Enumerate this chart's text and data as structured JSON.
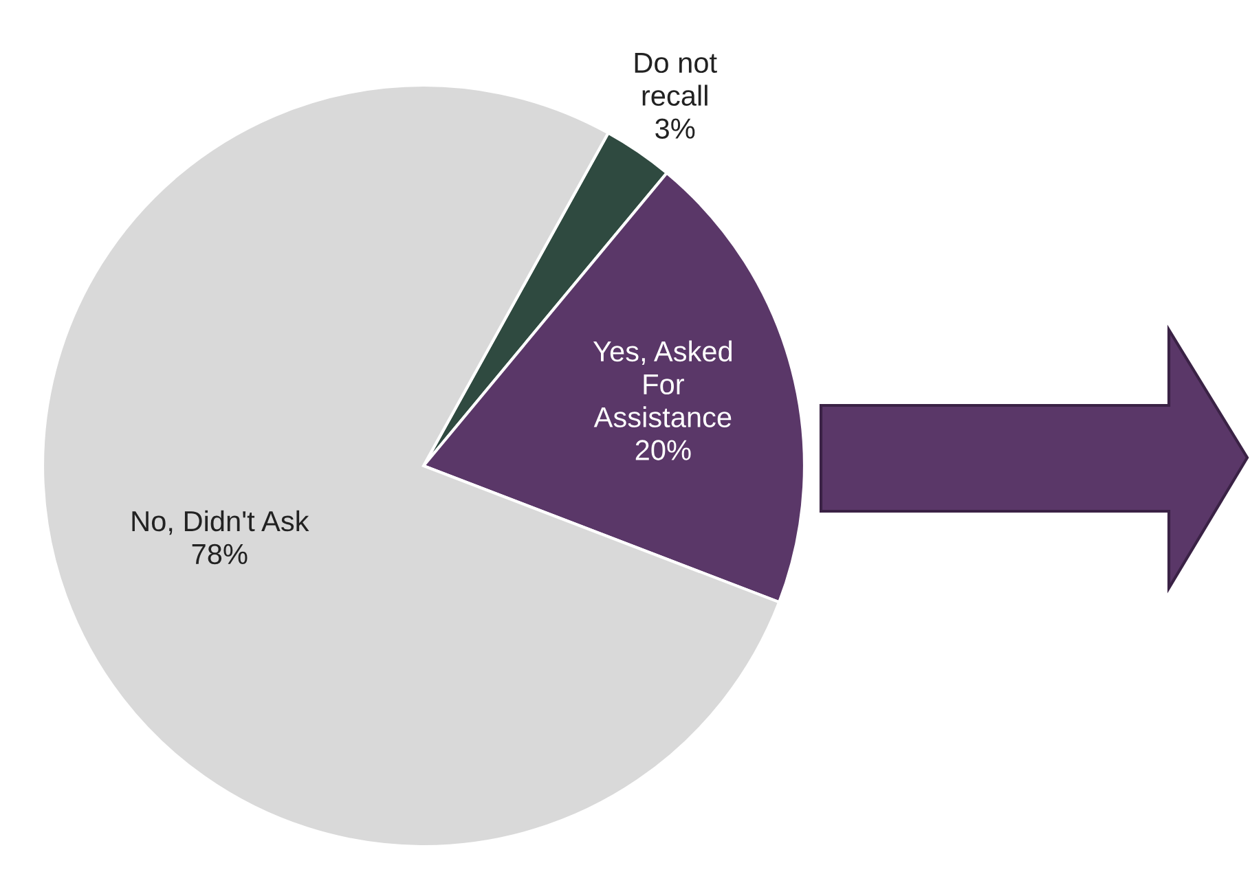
{
  "chart_data": {
    "type": "pie",
    "categories": [
      "Do not\nrecall",
      "Yes, Asked\nFor\nAssistance",
      "No, Didn't Ask"
    ],
    "values": [
      3,
      20,
      78
    ],
    "value_labels": [
      "3%",
      "20%",
      "78%"
    ],
    "colors": [
      "#2f4a40",
      "#5a3768",
      "#d9d9d9"
    ]
  }
}
